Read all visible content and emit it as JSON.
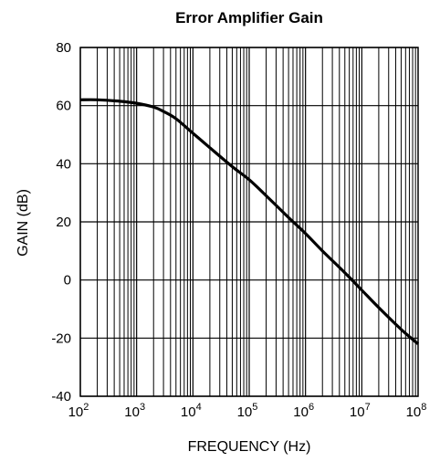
{
  "chart_data": {
    "type": "line",
    "title": "Error Amplifier Gain",
    "xlabel": "FREQUENCY (Hz)",
    "ylabel": "GAIN (dB)",
    "x_scale": "log",
    "xlim": [
      100,
      100000000
    ],
    "ylim": [
      -40,
      80
    ],
    "x_ticks": [
      {
        "value": 100,
        "base": "10",
        "exp": "2"
      },
      {
        "value": 1000,
        "base": "10",
        "exp": "3"
      },
      {
        "value": 10000,
        "base": "10",
        "exp": "4"
      },
      {
        "value": 100000,
        "base": "10",
        "exp": "5"
      },
      {
        "value": 1000000,
        "base": "10",
        "exp": "6"
      },
      {
        "value": 10000000,
        "base": "10",
        "exp": "7"
      },
      {
        "value": 100000000,
        "base": "10",
        "exp": "8"
      }
    ],
    "y_ticks": [
      {
        "value": 80,
        "label": "80"
      },
      {
        "value": 60,
        "label": "60"
      },
      {
        "value": 40,
        "label": "40"
      },
      {
        "value": 20,
        "label": "20"
      },
      {
        "value": 0,
        "label": "0"
      },
      {
        "value": -20,
        "label": "-20"
      },
      {
        "value": -40,
        "label": "-40"
      }
    ],
    "grid": true,
    "series": [
      {
        "color": "#000000",
        "x": [
          100,
          200,
          500,
          1000,
          2000,
          3000,
          5000,
          10000,
          20000,
          50000,
          100000,
          200000,
          500000,
          1000000,
          2000000,
          5000000,
          10000000,
          20000000,
          50000000,
          100000000
        ],
        "y": [
          62,
          62,
          61.5,
          60.8,
          59.5,
          58,
          55.5,
          50.5,
          45.5,
          39,
          34.5,
          29,
          21.5,
          16,
          10,
          2.5,
          -3.5,
          -9.5,
          -17,
          -22
        ]
      }
    ]
  }
}
